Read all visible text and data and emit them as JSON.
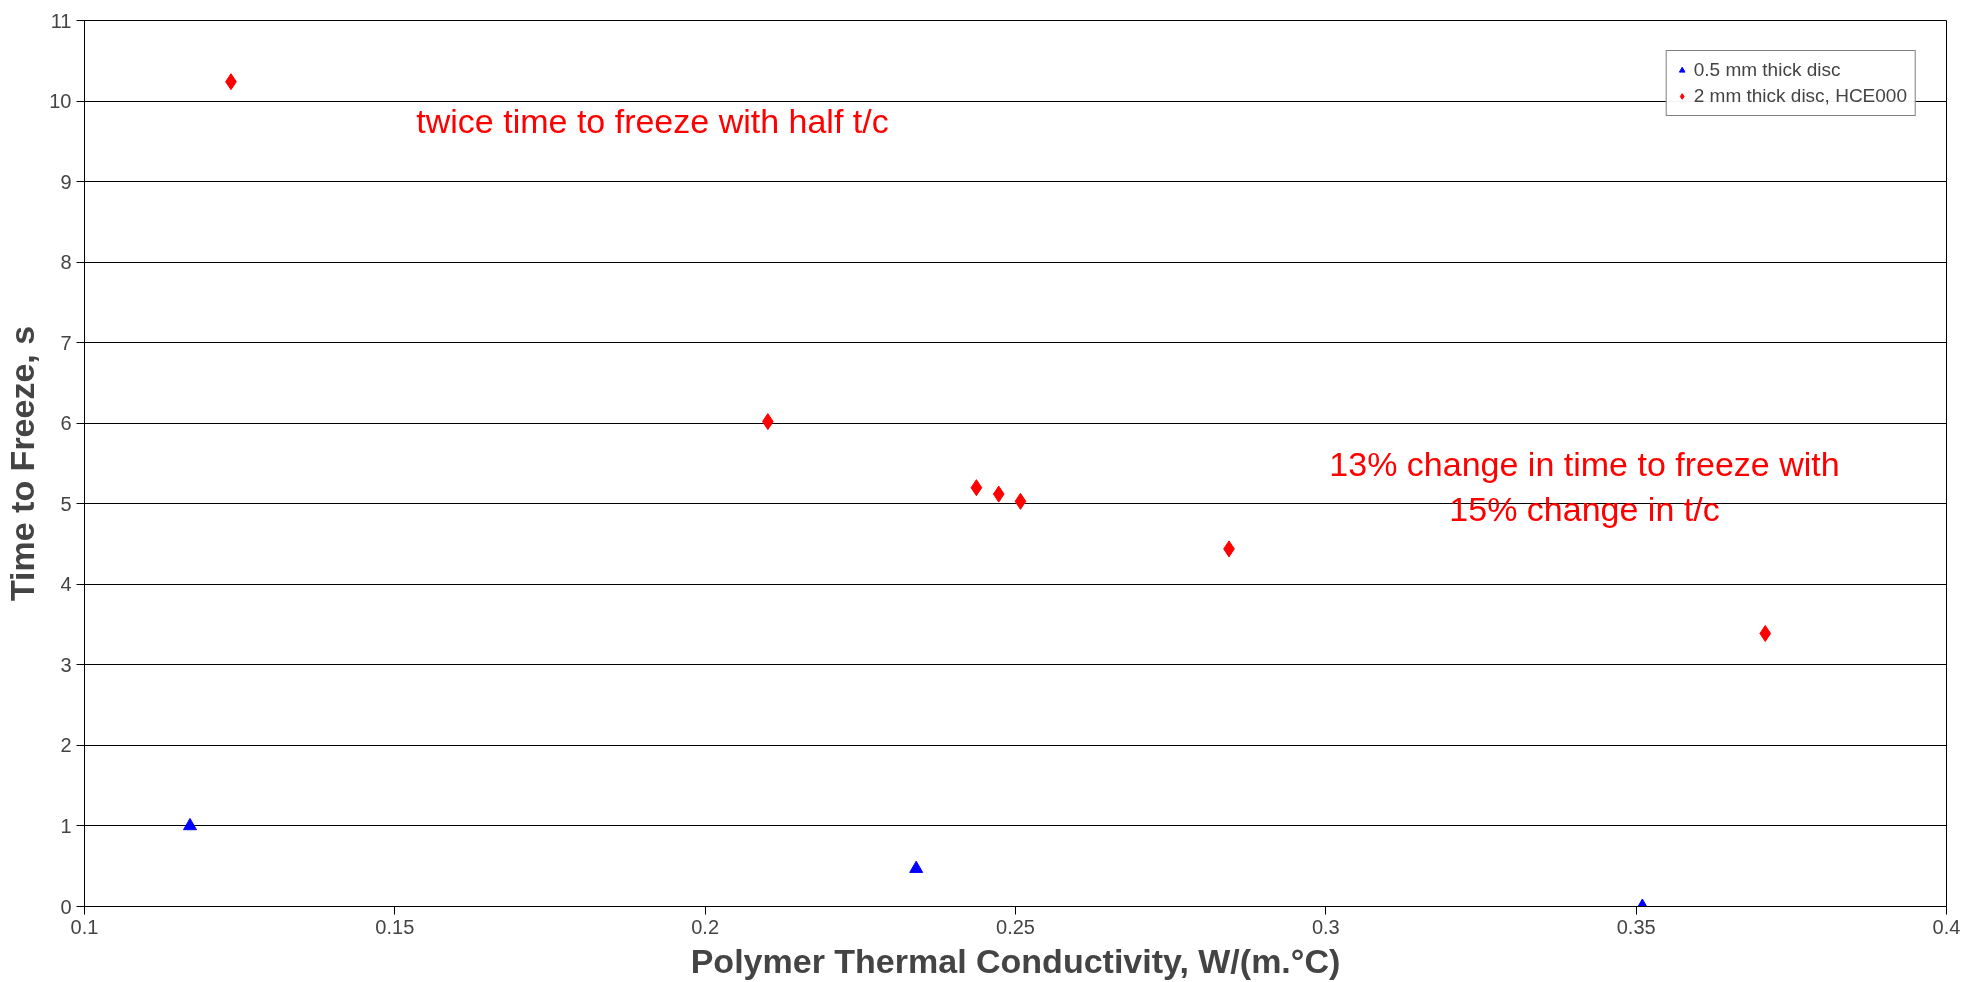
{
  "chart_data": {
    "type": "scatter",
    "xlabel": "Polymer Thermal Conductivity, W/(m.°C)",
    "ylabel": "Time to Freeze, s",
    "xlim": [
      0.1,
      0.4
    ],
    "xticks": [
      0.1,
      0.15,
      0.2,
      0.25,
      0.3,
      0.35,
      0.4
    ],
    "ylim": [
      0,
      11
    ],
    "yticks": [
      0,
      1,
      2,
      3,
      4,
      5,
      6,
      7,
      8,
      9,
      10,
      11
    ],
    "grid": "y",
    "legend": "top right",
    "series": [
      {
        "name": "0.5 mm thick disc",
        "color": "#0000ff",
        "marker": "triangle",
        "x": [
          0.117,
          0.234,
          0.351
        ],
        "values": [
          1.0,
          0.47,
          0.0
        ]
      },
      {
        "name": "2 mm thick disc, HCE000",
        "color": "#ff0000",
        "marker": "diamond",
        "x": [
          0.1236,
          0.2101,
          0.2437,
          0.2473,
          0.2508,
          0.2844,
          0.3708
        ],
        "values": [
          10.24,
          6.02,
          5.2,
          5.12,
          5.03,
          4.44,
          3.39
        ]
      }
    ],
    "annotations": [
      "twice time to freeze with half t/c",
      "13% change in time to freeze with\n15% change in t/c"
    ]
  }
}
